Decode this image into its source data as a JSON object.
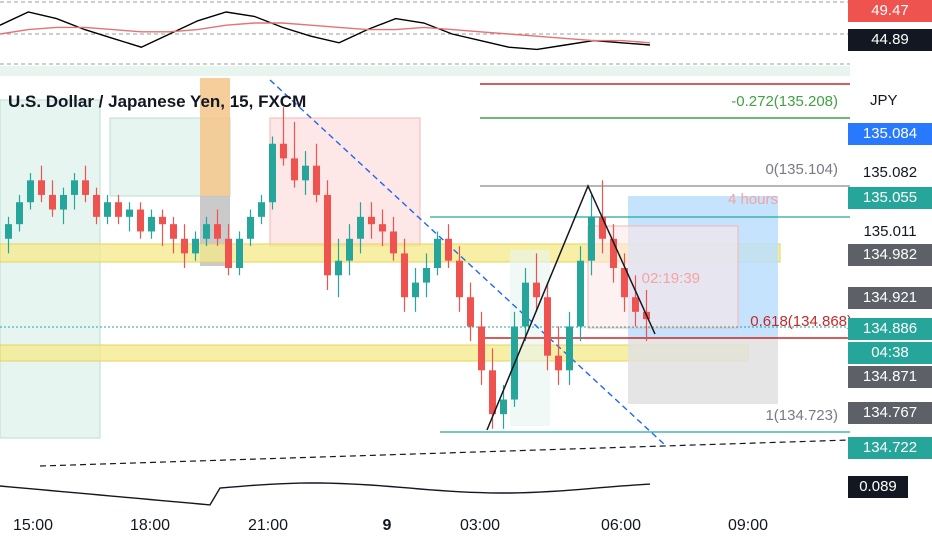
{
  "chart_title": "U.S. Dollar / Japanese Yen, 15, FXCM",
  "currency": "JPY",
  "colors": {
    "up": "#26a69a",
    "down": "#ef5350",
    "zone": "#f5e98a",
    "rsi": "#000000",
    "rsi_ma": "#e57373"
  },
  "oscillator": {
    "upper_value": "49.47",
    "current_value": "44.89"
  },
  "bottom_indicator": {
    "value": "0.089"
  },
  "time_axis": [
    "15:00",
    "18:00",
    "21:00",
    "9",
    "03:00",
    "06:00",
    "09:00"
  ],
  "fib": {
    "ext": "-0.272(135.208)",
    "zero": "0(135.104)",
    "mid": "0.618(134.868)",
    "one": "1(134.723)"
  },
  "annotations": {
    "hours": "4 hours",
    "timer": "02:19:39"
  },
  "price_labels": [
    {
      "text": "135.084",
      "style": "blue"
    },
    {
      "text": "135.082",
      "style": "plain"
    },
    {
      "text": "135.055",
      "style": "teal"
    },
    {
      "text": "135.011",
      "style": "plain"
    },
    {
      "text": "134.982",
      "style": "gray"
    },
    {
      "text": "134.921",
      "style": "gray"
    },
    {
      "text": "134.886",
      "style": "green"
    },
    {
      "text": "04:38",
      "style": "green"
    },
    {
      "text": "134.871",
      "style": "gray"
    },
    {
      "text": "134.767",
      "style": "gray"
    },
    {
      "text": "134.722",
      "style": "teal"
    }
  ],
  "chart_data": {
    "type": "candlestick",
    "title": "U.S. Dollar / Japanese Yen, 15, FXCM",
    "y_axis_range": [
      134.7,
      135.22
    ],
    "x_tick_labels": [
      "15:00",
      "18:00",
      "21:00",
      "9",
      "03:00",
      "06:00",
      "09:00"
    ],
    "candles": [
      [
        135.0,
        135.03,
        134.98,
        135.02
      ],
      [
        135.02,
        135.06,
        135.01,
        135.05
      ],
      [
        135.05,
        135.09,
        135.04,
        135.08
      ],
      [
        135.08,
        135.1,
        135.05,
        135.06
      ],
      [
        135.06,
        135.08,
        135.03,
        135.04
      ],
      [
        135.04,
        135.07,
        135.02,
        135.06
      ],
      [
        135.06,
        135.09,
        135.04,
        135.08
      ],
      [
        135.08,
        135.1,
        135.05,
        135.06
      ],
      [
        135.06,
        135.07,
        135.02,
        135.03
      ],
      [
        135.03,
        135.06,
        135.02,
        135.05
      ],
      [
        135.05,
        135.06,
        135.02,
        135.03
      ],
      [
        135.03,
        135.05,
        135.01,
        135.04
      ],
      [
        135.04,
        135.05,
        135.0,
        135.01
      ],
      [
        135.01,
        135.04,
        135.0,
        135.03
      ],
      [
        135.03,
        135.04,
        134.99,
        135.02
      ],
      [
        135.02,
        135.03,
        134.98,
        135.0
      ],
      [
        135.0,
        135.02,
        134.96,
        134.98
      ],
      [
        134.98,
        135.01,
        134.97,
        135.0
      ],
      [
        135.0,
        135.03,
        134.99,
        135.02
      ],
      [
        135.02,
        135.04,
        134.99,
        135.0
      ],
      [
        135.0,
        135.02,
        134.95,
        134.96
      ],
      [
        134.96,
        135.01,
        134.95,
        135.0
      ],
      [
        135.0,
        135.04,
        134.99,
        135.03
      ],
      [
        135.03,
        135.06,
        135.02,
        135.05
      ],
      [
        135.05,
        135.14,
        135.04,
        135.13
      ],
      [
        135.13,
        135.18,
        135.1,
        135.11
      ],
      [
        135.11,
        135.16,
        135.07,
        135.08
      ],
      [
        135.08,
        135.12,
        135.06,
        135.1
      ],
      [
        135.1,
        135.13,
        135.05,
        135.06
      ],
      [
        135.06,
        135.08,
        134.93,
        134.95
      ],
      [
        134.95,
        135.0,
        134.92,
        134.97
      ],
      [
        134.97,
        135.02,
        134.95,
        135.0
      ],
      [
        135.0,
        135.05,
        134.98,
        135.03
      ],
      [
        135.03,
        135.05,
        135.0,
        135.02
      ],
      [
        135.02,
        135.04,
        134.99,
        135.01
      ],
      [
        135.01,
        135.03,
        134.97,
        134.98
      ],
      [
        134.98,
        135.0,
        134.9,
        134.92
      ],
      [
        134.92,
        134.96,
        134.9,
        134.94
      ],
      [
        134.94,
        134.98,
        134.92,
        134.96
      ],
      [
        134.96,
        135.01,
        134.95,
        135.0
      ],
      [
        135.0,
        135.02,
        134.96,
        134.97
      ],
      [
        134.97,
        134.99,
        134.9,
        134.92
      ],
      [
        134.92,
        134.94,
        134.86,
        134.88
      ],
      [
        134.88,
        134.9,
        134.8,
        134.82
      ],
      [
        134.82,
        134.85,
        134.74,
        134.76
      ],
      [
        134.76,
        134.8,
        134.74,
        134.78
      ],
      [
        134.78,
        134.9,
        134.77,
        134.88
      ],
      [
        134.88,
        134.96,
        134.86,
        134.94
      ],
      [
        134.94,
        134.98,
        134.9,
        134.92
      ],
      [
        134.92,
        134.94,
        134.82,
        134.84
      ],
      [
        134.84,
        134.88,
        134.8,
        134.82
      ],
      [
        134.82,
        134.9,
        134.8,
        134.88
      ],
      [
        134.88,
        134.99,
        134.86,
        134.97
      ],
      [
        134.97,
        135.06,
        134.95,
        135.03
      ],
      [
        135.03,
        135.08,
        134.98,
        135.0
      ],
      [
        135.0,
        135.02,
        134.94,
        134.96
      ],
      [
        134.96,
        134.98,
        134.9,
        134.92
      ],
      [
        134.92,
        134.95,
        134.88,
        134.9
      ],
      [
        134.9,
        134.93,
        134.86,
        134.89
      ]
    ],
    "rsi_series": [
      {
        "name": "",
        "values": [
          54,
          60,
          57,
          52,
          48,
          44,
          50,
          56,
          60,
          58,
          53,
          49,
          46,
          52,
          57,
          55,
          50,
          47,
          44,
          43,
          45,
          47,
          46,
          45
        ]
      },
      {
        "name": "",
        "values": [
          50,
          52,
          53,
          53,
          52,
          51,
          51,
          52,
          54,
          55,
          55,
          54,
          53,
          52,
          52,
          53,
          52,
          51,
          50,
          49,
          48,
          47,
          47,
          46
        ]
      }
    ]
  }
}
